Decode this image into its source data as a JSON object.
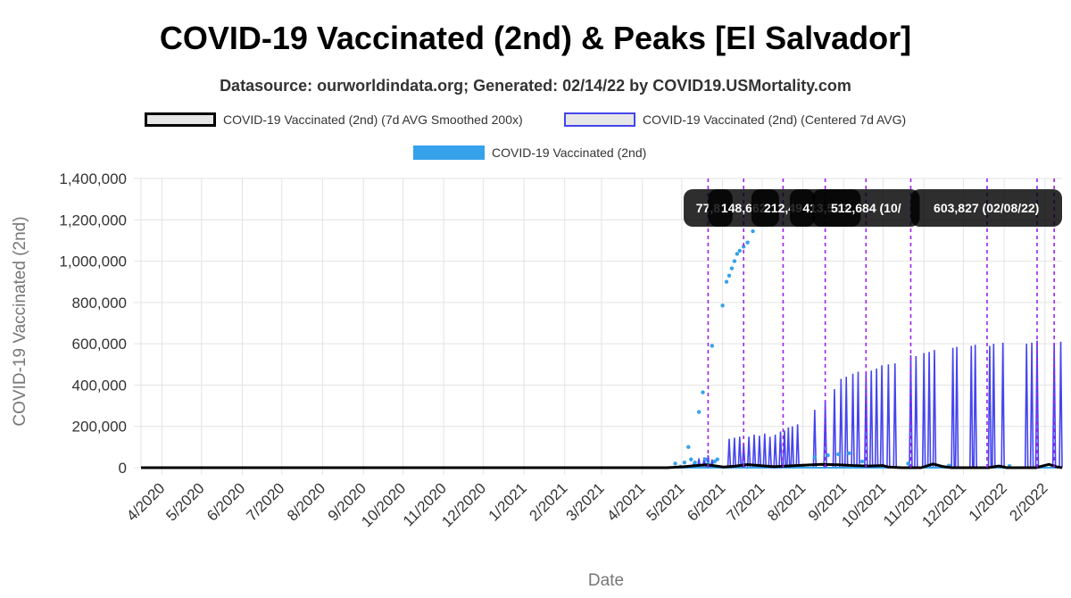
{
  "title": "COVID-19 Vaccinated (2nd) & Peaks [El Salvador]",
  "subtitle": "Datasource: ourworldindata.org; Generated: 02/14/22 by COVID19.USMortality.com",
  "colors": {
    "smoothed": "#000000",
    "centered": "#4444ee",
    "daily": "#36a2eb",
    "peak_line": "#a020f0",
    "grid": "#e3e3e3",
    "annotation_bg": "#000000"
  },
  "chart_data": {
    "type": "line",
    "title": "COVID-19 Vaccinated (2nd) & Peaks [El Salvador]",
    "subtitle": "Datasource: ourworldindata.org; Generated: 02/14/22 by COVID19.USMortality.com",
    "xlabel": "Date",
    "ylabel": "COVID-19 Vaccinated (2nd)",
    "ylim": [
      0,
      1400000
    ],
    "xlim": [
      "2020-03-16",
      "2022-02-14"
    ],
    "y_ticks": [
      "0",
      "200,000",
      "400,000",
      "600,000",
      "800,000",
      "1,000,000",
      "1,200,000",
      "1,400,000"
    ],
    "x_ticks": [
      "4/2020",
      "5/2020",
      "6/2020",
      "7/2020",
      "8/2020",
      "9/2020",
      "10/2020",
      "11/2020",
      "12/2020",
      "1/2021",
      "2/2021",
      "3/2021",
      "4/2021",
      "5/2021",
      "6/2021",
      "7/2021",
      "8/2021",
      "9/2021",
      "10/2021",
      "11/2021",
      "12/2021",
      "1/2022",
      "2/2022"
    ],
    "grid": true,
    "legend_position": "top",
    "series": [
      {
        "name": "COVID-19 Vaccinated (2nd) (7d AVG Smoothed 200x)",
        "style": "line",
        "points": [
          [
            "2021-04-20",
            0
          ],
          [
            "2021-05-01",
            4000
          ],
          [
            "2021-05-10",
            9000
          ],
          [
            "2021-05-19",
            14000
          ],
          [
            "2021-05-26",
            9000
          ],
          [
            "2021-06-02",
            3000
          ],
          [
            "2021-06-10",
            7000
          ],
          [
            "2021-06-20",
            15000
          ],
          [
            "2021-07-01",
            9000
          ],
          [
            "2021-07-10",
            5000
          ],
          [
            "2021-07-20",
            8000
          ],
          [
            "2021-08-01",
            12000
          ],
          [
            "2021-08-15",
            16000
          ],
          [
            "2021-08-28",
            14000
          ],
          [
            "2021-09-10",
            10000
          ],
          [
            "2021-09-20",
            8000
          ],
          [
            "2021-10-01",
            10000
          ],
          [
            "2021-10-05",
            3000
          ],
          [
            "2021-10-15",
            0
          ],
          [
            "2021-10-30",
            0
          ],
          [
            "2021-11-08",
            18000
          ],
          [
            "2021-11-15",
            6000
          ],
          [
            "2021-11-22",
            0
          ],
          [
            "2021-12-20",
            0
          ],
          [
            "2021-12-28",
            8000
          ],
          [
            "2022-01-03",
            0
          ],
          [
            "2022-01-25",
            0
          ],
          [
            "2022-02-04",
            16000
          ],
          [
            "2022-02-10",
            4000
          ],
          [
            "2022-02-14",
            0
          ]
        ]
      },
      {
        "name": "COVID-19 Vaccinated (2nd) (Centered 7d AVG)",
        "style": "line",
        "spikes": [
          [
            "2021-05-10",
            20000
          ],
          [
            "2021-05-14",
            45000
          ],
          [
            "2021-05-18",
            50000
          ],
          [
            "2021-05-21",
            60000
          ],
          [
            "2021-05-24",
            40000
          ],
          [
            "2021-06-06",
            140000
          ],
          [
            "2021-06-10",
            145000
          ],
          [
            "2021-06-14",
            150000
          ],
          [
            "2021-06-17",
            120000
          ],
          [
            "2021-06-21",
            150000
          ],
          [
            "2021-06-25",
            160000
          ],
          [
            "2021-06-29",
            155000
          ],
          [
            "2021-07-03",
            165000
          ],
          [
            "2021-07-07",
            150000
          ],
          [
            "2021-07-11",
            160000
          ],
          [
            "2021-07-15",
            175000
          ],
          [
            "2021-07-18",
            180000
          ],
          [
            "2021-07-21",
            195000
          ],
          [
            "2021-07-24",
            200000
          ],
          [
            "2021-07-28",
            210000
          ],
          [
            "2021-08-10",
            280000
          ],
          [
            "2021-08-18",
            320000
          ],
          [
            "2021-08-25",
            380000
          ],
          [
            "2021-08-30",
            430000
          ],
          [
            "2021-09-03",
            440000
          ],
          [
            "2021-09-08",
            455000
          ],
          [
            "2021-09-12",
            465000
          ],
          [
            "2021-09-18",
            460000
          ],
          [
            "2021-09-22",
            470000
          ],
          [
            "2021-09-26",
            480000
          ],
          [
            "2021-09-30",
            495000
          ],
          [
            "2021-10-05",
            500000
          ],
          [
            "2021-10-10",
            505000
          ],
          [
            "2021-10-22",
            545000
          ],
          [
            "2021-10-26",
            540000
          ],
          [
            "2021-11-01",
            555000
          ],
          [
            "2021-11-05",
            560000
          ],
          [
            "2021-11-09",
            570000
          ],
          [
            "2021-11-23",
            580000
          ],
          [
            "2021-11-26",
            585000
          ],
          [
            "2021-12-07",
            590000
          ],
          [
            "2021-12-10",
            595000
          ],
          [
            "2021-12-21",
            590000
          ],
          [
            "2021-12-24",
            600000
          ],
          [
            "2021-12-31",
            605000
          ],
          [
            "2022-01-18",
            600000
          ],
          [
            "2022-01-22",
            605000
          ],
          [
            "2022-01-26",
            615000
          ],
          [
            "2022-02-08",
            604000
          ],
          [
            "2022-02-13",
            610000
          ]
        ]
      },
      {
        "name": "COVID-19 Vaccinated (2nd)",
        "style": "scatter",
        "points": [
          [
            "2021-04-26",
            20000
          ],
          [
            "2021-04-30",
            5000
          ],
          [
            "2021-05-03",
            25000
          ],
          [
            "2021-05-06",
            100000
          ],
          [
            "2021-05-08",
            40000
          ],
          [
            "2021-05-11",
            25000
          ],
          [
            "2021-05-14",
            270000
          ],
          [
            "2021-05-17",
            365000
          ],
          [
            "2021-05-19",
            40000
          ],
          [
            "2021-05-21",
            20000
          ],
          [
            "2021-05-24",
            590000
          ],
          [
            "2021-05-26",
            30000
          ],
          [
            "2021-05-28",
            40000
          ],
          [
            "2021-06-01",
            785000
          ],
          [
            "2021-06-04",
            900000
          ],
          [
            "2021-06-06",
            930000
          ],
          [
            "2021-06-08",
            965000
          ],
          [
            "2021-06-10",
            1000000
          ],
          [
            "2021-06-12",
            1035000
          ],
          [
            "2021-06-14",
            1050000
          ],
          [
            "2021-06-17",
            1070000
          ],
          [
            "2021-06-20",
            1090000
          ],
          [
            "2021-06-24",
            1145000
          ],
          [
            "2021-08-01",
            10000
          ],
          [
            "2021-08-10",
            50000
          ],
          [
            "2021-08-20",
            60000
          ],
          [
            "2021-08-28",
            65000
          ],
          [
            "2021-09-05",
            70000
          ],
          [
            "2021-09-15",
            30000
          ],
          [
            "2021-10-20",
            20000
          ],
          [
            "2021-11-20",
            10000
          ],
          [
            "2022-01-05",
            8000
          ]
        ]
      }
    ],
    "peaks": [
      {
        "date": "2021-05-21",
        "label": "77,8"
      },
      {
        "date": "2021-06-17",
        "label": "148,662"
      },
      {
        "date": "2021-07-17",
        "label": "212,49"
      },
      {
        "date": "2021-08-18",
        "label": "413,539"
      },
      {
        "date": "2021-09-18",
        "label": "512,684 (10/"
      },
      {
        "date": "2021-10-22",
        "label": ""
      },
      {
        "date": "2021-12-19",
        "label": ""
      },
      {
        "date": "2022-01-26",
        "label": ""
      },
      {
        "date": "2022-02-08",
        "label": "603,827 (02/08/22)"
      }
    ]
  }
}
